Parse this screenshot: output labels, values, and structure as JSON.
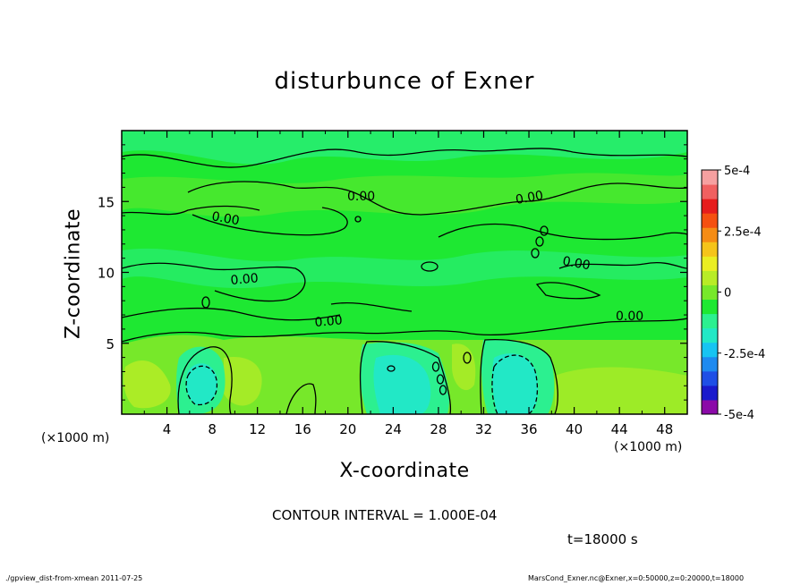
{
  "chart_data": {
    "type": "heatmap",
    "title": "disturbunce of Exner",
    "xlabel": "X-coordinate",
    "ylabel": "Z-coordinate",
    "x_unit_label": "(×1000 m)",
    "x_ticks": [
      4,
      8,
      12,
      16,
      20,
      24,
      28,
      32,
      36,
      40,
      44,
      48
    ],
    "y_ticks": [
      5,
      10,
      15
    ],
    "xlim": [
      0,
      50
    ],
    "ylim": [
      0,
      20
    ],
    "grid": false,
    "colorbar": {
      "placement": "right",
      "range": [
        -0.0005,
        0.0005
      ],
      "tick_labels": [
        "5e-4",
        "2.5e-4",
        "0",
        "-2.5e-4",
        "-5e-4"
      ],
      "tick_values": [
        0.0005,
        0.00025,
        0,
        -0.00025,
        -0.0005
      ],
      "colors": [
        "#8b0aa8",
        "#1a1acc",
        "#1f4fe6",
        "#1e8af0",
        "#17c4f2",
        "#22e8c6",
        "#2cf090",
        "#1ee832",
        "#77e82a",
        "#b8ec26",
        "#eaee22",
        "#f5c41a",
        "#f58c14",
        "#f55010",
        "#e61c1c",
        "#f06060",
        "#f6a0a0"
      ]
    },
    "contour_label": "0.00",
    "contour_interval_text": "CONTOUR INTERVAL = 1.000E-04",
    "time_text": "t=18000 s"
  },
  "footer": {
    "left": "./gpview_dist-from-xmean  2011-07-25",
    "right": "MarsCond_Exner.nc@Exner,x=0:50000,z=0:20000,t=18000"
  }
}
